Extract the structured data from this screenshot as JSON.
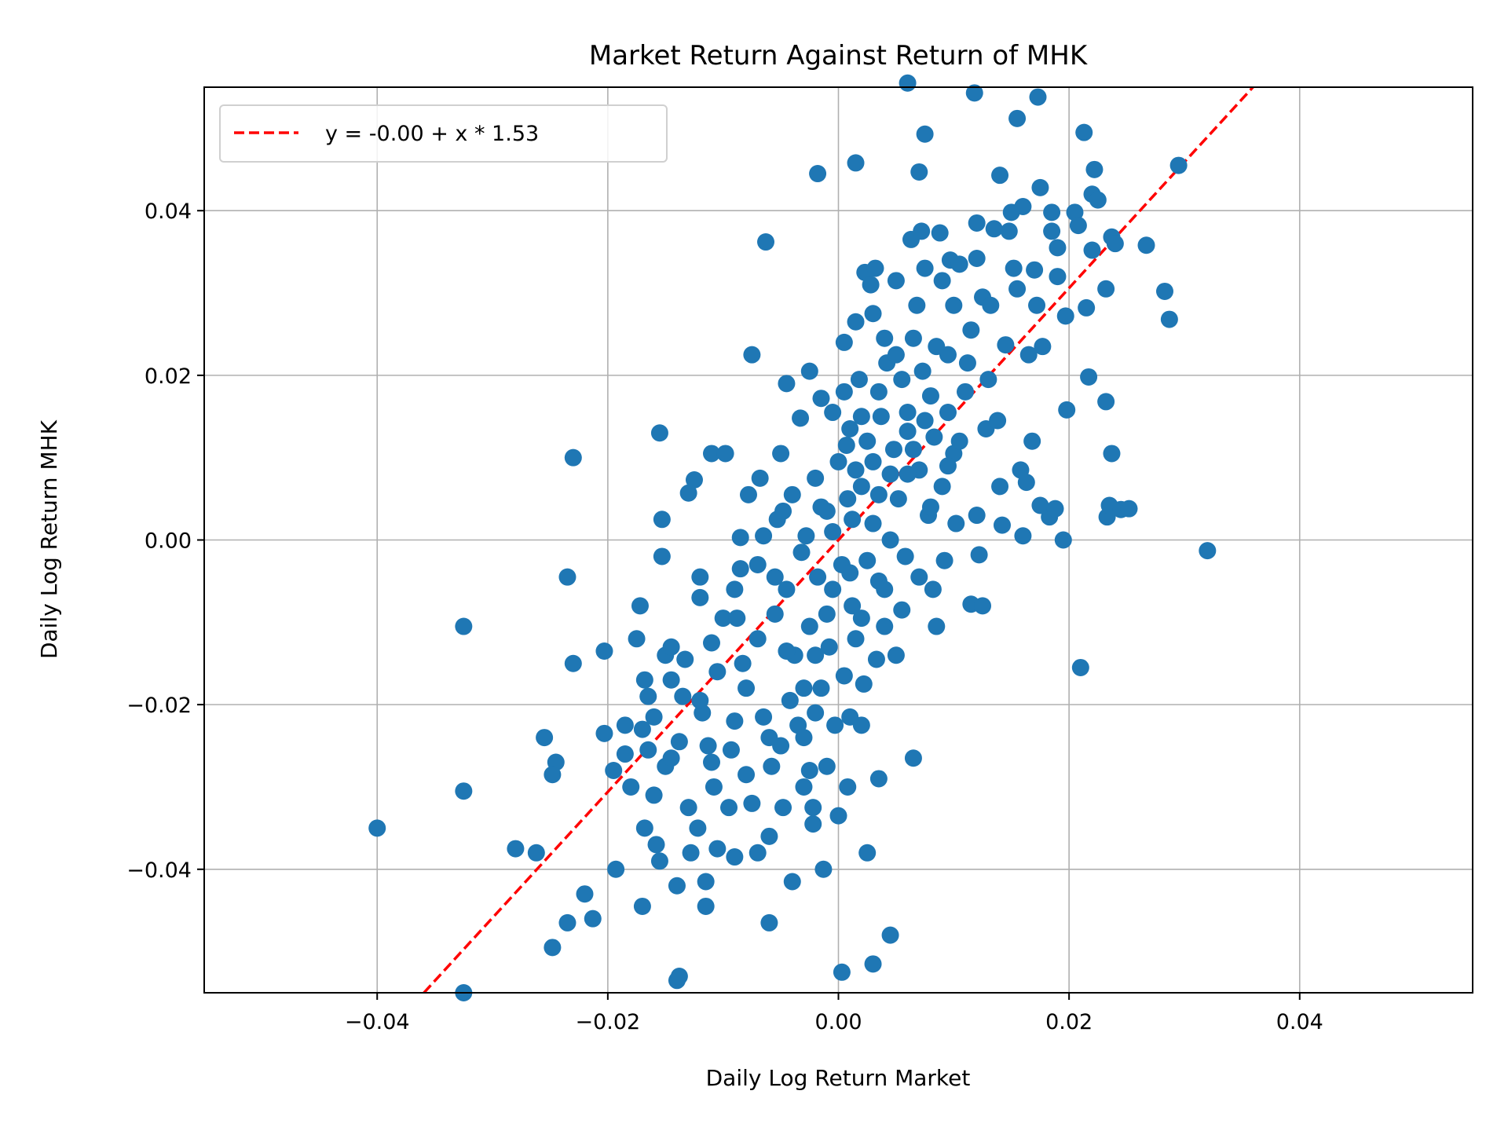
{
  "chart_data": {
    "type": "scatter",
    "title": "Market Return Against Return of MHK",
    "xlabel": "Daily Log Return Market",
    "ylabel": "Daily Log Return MHK",
    "xlim": [
      -0.055,
      0.055
    ],
    "ylim": [
      -0.055,
      0.055
    ],
    "grid": true,
    "legend_position": "top-left",
    "x_ticks": [
      "−0.04",
      "−0.02",
      "0.00",
      "0.02",
      "0.04"
    ],
    "x_tick_values": [
      -0.04,
      -0.02,
      0,
      0.02,
      0.04
    ],
    "y_ticks": [
      "−0.04",
      "−0.02",
      "0.00",
      "0.02",
      "0.04"
    ],
    "y_tick_values": [
      -0.04,
      -0.02,
      0,
      0.02,
      0.04
    ],
    "point_color": "#1f77b4",
    "fit_line": {
      "label": "y = -0.00 + x * 1.53",
      "intercept": 0.0,
      "slope": 1.53,
      "color": "#ff0000",
      "style": "dashed"
    },
    "points": [
      [
        -0.04,
        -0.035
      ],
      [
        -0.0325,
        -0.0305
      ],
      [
        -0.0325,
        -0.0105
      ],
      [
        -0.0325,
        -0.055
      ],
      [
        -0.028,
        -0.0375
      ],
      [
        -0.0262,
        -0.038
      ],
      [
        -0.0255,
        -0.024
      ],
      [
        -0.0245,
        -0.027
      ],
      [
        -0.0248,
        -0.0285
      ],
      [
        -0.0248,
        -0.0495
      ],
      [
        -0.0235,
        -0.0465
      ],
      [
        -0.0235,
        -0.0045
      ],
      [
        -0.023,
        0.01
      ],
      [
        -0.023,
        -0.015
      ],
      [
        -0.022,
        -0.043
      ],
      [
        -0.0213,
        -0.046
      ],
      [
        -0.0203,
        -0.0135
      ],
      [
        -0.0203,
        -0.0235
      ],
      [
        -0.0195,
        -0.028
      ],
      [
        -0.0193,
        -0.04
      ],
      [
        -0.0185,
        -0.0225
      ],
      [
        -0.018,
        -0.03
      ],
      [
        -0.0175,
        -0.012
      ],
      [
        -0.0172,
        -0.008
      ],
      [
        -0.017,
        -0.0445
      ],
      [
        -0.0168,
        -0.035
      ],
      [
        -0.0168,
        -0.017
      ],
      [
        -0.0165,
        -0.0255
      ],
      [
        -0.016,
        -0.0215
      ],
      [
        -0.016,
        -0.031
      ],
      [
        -0.0158,
        -0.037
      ],
      [
        -0.0155,
        -0.039
      ],
      [
        -0.0155,
        0.013
      ],
      [
        -0.0153,
        0.0025
      ],
      [
        -0.0153,
        -0.002
      ],
      [
        -0.015,
        -0.014
      ],
      [
        -0.015,
        -0.0275
      ],
      [
        -0.0145,
        -0.0265
      ],
      [
        -0.0145,
        -0.013
      ],
      [
        -0.014,
        -0.0535
      ],
      [
        -0.0138,
        -0.053
      ],
      [
        -0.014,
        -0.042
      ],
      [
        -0.0138,
        -0.0245
      ],
      [
        -0.0135,
        -0.019
      ],
      [
        -0.0133,
        -0.0145
      ],
      [
        -0.013,
        -0.0325
      ],
      [
        -0.013,
        0.0057
      ],
      [
        -0.0128,
        -0.038
      ],
      [
        -0.0125,
        0.0073
      ],
      [
        -0.0122,
        -0.035
      ],
      [
        -0.012,
        -0.0045
      ],
      [
        -0.012,
        -0.007
      ],
      [
        -0.0118,
        -0.021
      ],
      [
        -0.0115,
        -0.0445
      ],
      [
        -0.0115,
        -0.0415
      ],
      [
        -0.0113,
        -0.025
      ],
      [
        -0.011,
        0.0105
      ],
      [
        -0.011,
        -0.0125
      ],
      [
        -0.0108,
        -0.03
      ],
      [
        -0.0105,
        -0.0375
      ],
      [
        -0.0105,
        -0.016
      ],
      [
        -0.01,
        -0.0095
      ],
      [
        -0.0098,
        0.0105
      ],
      [
        -0.0095,
        -0.0325
      ],
      [
        -0.0093,
        -0.0255
      ],
      [
        -0.009,
        -0.0385
      ],
      [
        -0.0088,
        -0.0095
      ],
      [
        -0.0085,
        -0.0035
      ],
      [
        -0.0085,
        0.0003
      ],
      [
        -0.0083,
        -0.015
      ],
      [
        -0.008,
        -0.018
      ],
      [
        -0.008,
        -0.0285
      ],
      [
        -0.0078,
        0.0055
      ],
      [
        -0.0075,
        0.0225
      ],
      [
        -0.0075,
        -0.032
      ],
      [
        -0.007,
        -0.038
      ],
      [
        -0.007,
        -0.012
      ],
      [
        -0.0068,
        0.0075
      ],
      [
        -0.0065,
        -0.0215
      ],
      [
        -0.0065,
        0.0005
      ],
      [
        -0.0063,
        0.0362
      ],
      [
        -0.006,
        -0.0465
      ],
      [
        -0.006,
        -0.036
      ],
      [
        -0.0058,
        -0.0275
      ],
      [
        -0.0055,
        -0.0045
      ],
      [
        -0.0055,
        -0.009
      ],
      [
        -0.0053,
        0.0025
      ],
      [
        -0.005,
        0.0105
      ],
      [
        -0.005,
        -0.025
      ],
      [
        -0.0048,
        -0.0325
      ],
      [
        -0.0048,
        0.0035
      ],
      [
        -0.0045,
        0.019
      ],
      [
        -0.0045,
        -0.006
      ],
      [
        -0.0042,
        -0.0195
      ],
      [
        -0.004,
        -0.0415
      ],
      [
        -0.004,
        0.0055
      ],
      [
        -0.0038,
        -0.014
      ],
      [
        -0.0035,
        -0.0225
      ],
      [
        -0.0033,
        0.0148
      ],
      [
        -0.0032,
        -0.0015
      ],
      [
        -0.003,
        -0.03
      ],
      [
        -0.0028,
        0.0005
      ],
      [
        -0.0025,
        -0.0105
      ],
      [
        -0.0025,
        0.0205
      ],
      [
        -0.0025,
        -0.028
      ],
      [
        -0.0022,
        -0.0345
      ],
      [
        -0.0022,
        -0.0325
      ],
      [
        -0.002,
        0.0075
      ],
      [
        -0.0018,
        0.0445
      ],
      [
        -0.0018,
        -0.0045
      ],
      [
        -0.0015,
        -0.018
      ],
      [
        -0.0015,
        0.0172
      ],
      [
        -0.0013,
        -0.04
      ],
      [
        -0.001,
        -0.0275
      ],
      [
        -0.001,
        0.0035
      ],
      [
        -0.0008,
        -0.013
      ],
      [
        -0.0005,
        0.0155
      ],
      [
        -0.0005,
        -0.006
      ],
      [
        -0.0003,
        -0.0225
      ],
      [
        0.0,
        0.0095
      ],
      [
        0.0,
        -0.0335
      ],
      [
        0.0003,
        -0.0525
      ],
      [
        0.0003,
        -0.003
      ],
      [
        0.0005,
        0.024
      ],
      [
        0.0005,
        -0.0165
      ],
      [
        0.0008,
        -0.03
      ],
      [
        0.0008,
        0.005
      ],
      [
        0.001,
        -0.0215
      ],
      [
        0.001,
        0.0135
      ],
      [
        0.0012,
        -0.008
      ],
      [
        0.0015,
        0.0458
      ],
      [
        0.0015,
        0.0265
      ],
      [
        0.0015,
        -0.012
      ],
      [
        0.0018,
        0.0195
      ],
      [
        0.002,
        -0.0225
      ],
      [
        0.002,
        0.0065
      ],
      [
        0.0022,
        -0.0175
      ],
      [
        0.0023,
        0.0325
      ],
      [
        0.0025,
        -0.038
      ],
      [
        0.0025,
        -0.0025
      ],
      [
        0.0028,
        0.031
      ],
      [
        0.003,
        -0.0515
      ],
      [
        0.003,
        0.0275
      ],
      [
        0.003,
        0.0095
      ],
      [
        0.0032,
        0.033
      ],
      [
        0.0033,
        -0.0145
      ],
      [
        0.0035,
        -0.029
      ],
      [
        0.0035,
        -0.005
      ],
      [
        0.0035,
        0.018
      ],
      [
        0.0037,
        0.015
      ],
      [
        0.004,
        -0.0105
      ],
      [
        0.004,
        0.0245
      ],
      [
        0.0042,
        0.0215
      ],
      [
        0.0045,
        0.0
      ],
      [
        0.0045,
        -0.048
      ],
      [
        0.0048,
        0.011
      ],
      [
        0.005,
        0.0315
      ],
      [
        0.005,
        -0.014
      ],
      [
        0.0052,
        0.005
      ],
      [
        0.0055,
        -0.0085
      ],
      [
        0.0055,
        0.0195
      ],
      [
        0.0058,
        -0.002
      ],
      [
        0.006,
        0.0132
      ],
      [
        0.006,
        0.0555
      ],
      [
        0.0063,
        0.0365
      ],
      [
        0.0065,
        0.0245
      ],
      [
        0.0065,
        -0.0265
      ],
      [
        0.0068,
        0.0285
      ],
      [
        0.007,
        0.0447
      ],
      [
        0.007,
        -0.0045
      ],
      [
        0.007,
        0.0085
      ],
      [
        0.0072,
        0.0375
      ],
      [
        0.0073,
        0.0205
      ],
      [
        0.0075,
        0.033
      ],
      [
        0.0075,
        0.0493
      ],
      [
        0.0078,
        0.003
      ],
      [
        0.008,
        0.0175
      ],
      [
        0.0082,
        -0.006
      ],
      [
        0.0083,
        0.0125
      ],
      [
        0.0085,
        -0.0105
      ],
      [
        0.0088,
        0.0373
      ],
      [
        0.009,
        0.0315
      ],
      [
        0.009,
        0.0065
      ],
      [
        0.0092,
        -0.0025
      ],
      [
        0.0095,
        0.0225
      ],
      [
        0.0097,
        0.034
      ],
      [
        0.01,
        0.0285
      ],
      [
        0.01,
        0.0105
      ],
      [
        0.0102,
        0.002
      ],
      [
        0.0105,
        0.0335
      ],
      [
        0.011,
        0.018
      ],
      [
        0.0112,
        0.0215
      ],
      [
        0.0115,
        0.0255
      ],
      [
        0.0115,
        -0.0078
      ],
      [
        0.0118,
        0.0543
      ],
      [
        0.012,
        0.0385
      ],
      [
        0.012,
        0.0342
      ],
      [
        0.012,
        0.003
      ],
      [
        0.0122,
        -0.0018
      ],
      [
        0.0125,
        -0.008
      ],
      [
        0.0125,
        0.0295
      ],
      [
        0.0128,
        0.0135
      ],
      [
        0.013,
        0.0195
      ],
      [
        0.0132,
        0.0285
      ],
      [
        0.0135,
        0.0378
      ],
      [
        0.0138,
        0.0145
      ],
      [
        0.014,
        0.0443
      ],
      [
        0.014,
        0.0065
      ],
      [
        0.0142,
        0.0018
      ],
      [
        0.0145,
        0.0237
      ],
      [
        0.0148,
        0.0375
      ],
      [
        0.015,
        0.0398
      ],
      [
        0.0152,
        0.033
      ],
      [
        0.0155,
        0.0512
      ],
      [
        0.0155,
        0.0305
      ],
      [
        0.0158,
        0.0085
      ],
      [
        0.016,
        0.0405
      ],
      [
        0.016,
        0.0005
      ],
      [
        0.0163,
        0.007
      ],
      [
        0.0165,
        0.0225
      ],
      [
        0.0168,
        0.012
      ],
      [
        0.017,
        0.0328
      ],
      [
        0.0172,
        0.0285
      ],
      [
        0.0173,
        0.0538
      ],
      [
        0.0175,
        0.0428
      ],
      [
        0.0175,
        0.0042
      ],
      [
        0.0177,
        0.0235
      ],
      [
        0.0183,
        0.0028
      ],
      [
        0.0185,
        0.0398
      ],
      [
        0.0185,
        0.0375
      ],
      [
        0.0188,
        0.0038
      ],
      [
        0.019,
        0.0355
      ],
      [
        0.019,
        0.032
      ],
      [
        0.0195,
        0.0
      ],
      [
        0.0197,
        0.0272
      ],
      [
        0.0198,
        0.0158
      ],
      [
        0.0205,
        0.0398
      ],
      [
        0.0208,
        0.0382
      ],
      [
        0.021,
        -0.0155
      ],
      [
        0.0213,
        0.0495
      ],
      [
        0.0215,
        0.0282
      ],
      [
        0.0217,
        0.0198
      ],
      [
        0.022,
        0.042
      ],
      [
        0.022,
        0.0352
      ],
      [
        0.0222,
        0.045
      ],
      [
        0.0225,
        0.0413
      ],
      [
        0.0232,
        0.0305
      ],
      [
        0.0232,
        0.0168
      ],
      [
        0.0233,
        0.0028
      ],
      [
        0.0235,
        0.0042
      ],
      [
        0.0237,
        0.0368
      ],
      [
        0.0237,
        0.0105
      ],
      [
        0.024,
        0.036
      ],
      [
        0.0245,
        0.0037
      ],
      [
        0.0252,
        0.0038
      ],
      [
        0.0267,
        0.0358
      ],
      [
        0.0283,
        0.0302
      ],
      [
        0.0287,
        0.0268
      ],
      [
        0.0295,
        0.0455
      ],
      [
        0.032,
        -0.0013
      ],
      [
        0.0007,
        0.0115
      ],
      [
        0.0012,
        0.0025
      ],
      [
        -0.0005,
        0.001
      ],
      [
        0.0025,
        0.012
      ],
      [
        0.0015,
        0.0085
      ],
      [
        0.0035,
        0.0055
      ],
      [
        0.006,
        0.0155
      ],
      [
        0.005,
        0.0225
      ],
      [
        0.0085,
        0.0235
      ],
      [
        -0.0015,
        0.004
      ],
      [
        -0.003,
        -0.018
      ],
      [
        -0.006,
        -0.024
      ],
      [
        -0.009,
        -0.022
      ],
      [
        -0.011,
        -0.027
      ],
      [
        -0.007,
        -0.003
      ],
      [
        -0.009,
        -0.006
      ],
      [
        -0.002,
        -0.014
      ],
      [
        0.002,
        -0.0095
      ],
      [
        0.004,
        -0.006
      ],
      [
        -0.0045,
        -0.0135
      ],
      [
        0.0005,
        0.018
      ],
      [
        0.002,
        0.015
      ],
      [
        0.006,
        0.008
      ],
      [
        0.008,
        0.004
      ],
      [
        0.0105,
        0.012
      ],
      [
        0.0095,
        0.0155
      ],
      [
        -0.012,
        -0.0195
      ],
      [
        -0.0145,
        -0.017
      ],
      [
        -0.017,
        -0.023
      ],
      [
        -0.0185,
        -0.026
      ],
      [
        -0.0165,
        -0.019
      ],
      [
        -0.001,
        -0.009
      ],
      [
        0.001,
        -0.004
      ],
      [
        -0.003,
        -0.024
      ],
      [
        -0.002,
        -0.021
      ],
      [
        0.003,
        0.002
      ],
      [
        0.0045,
        0.008
      ],
      [
        0.0065,
        0.011
      ],
      [
        0.0075,
        0.0145
      ],
      [
        0.0095,
        0.009
      ]
    ]
  }
}
